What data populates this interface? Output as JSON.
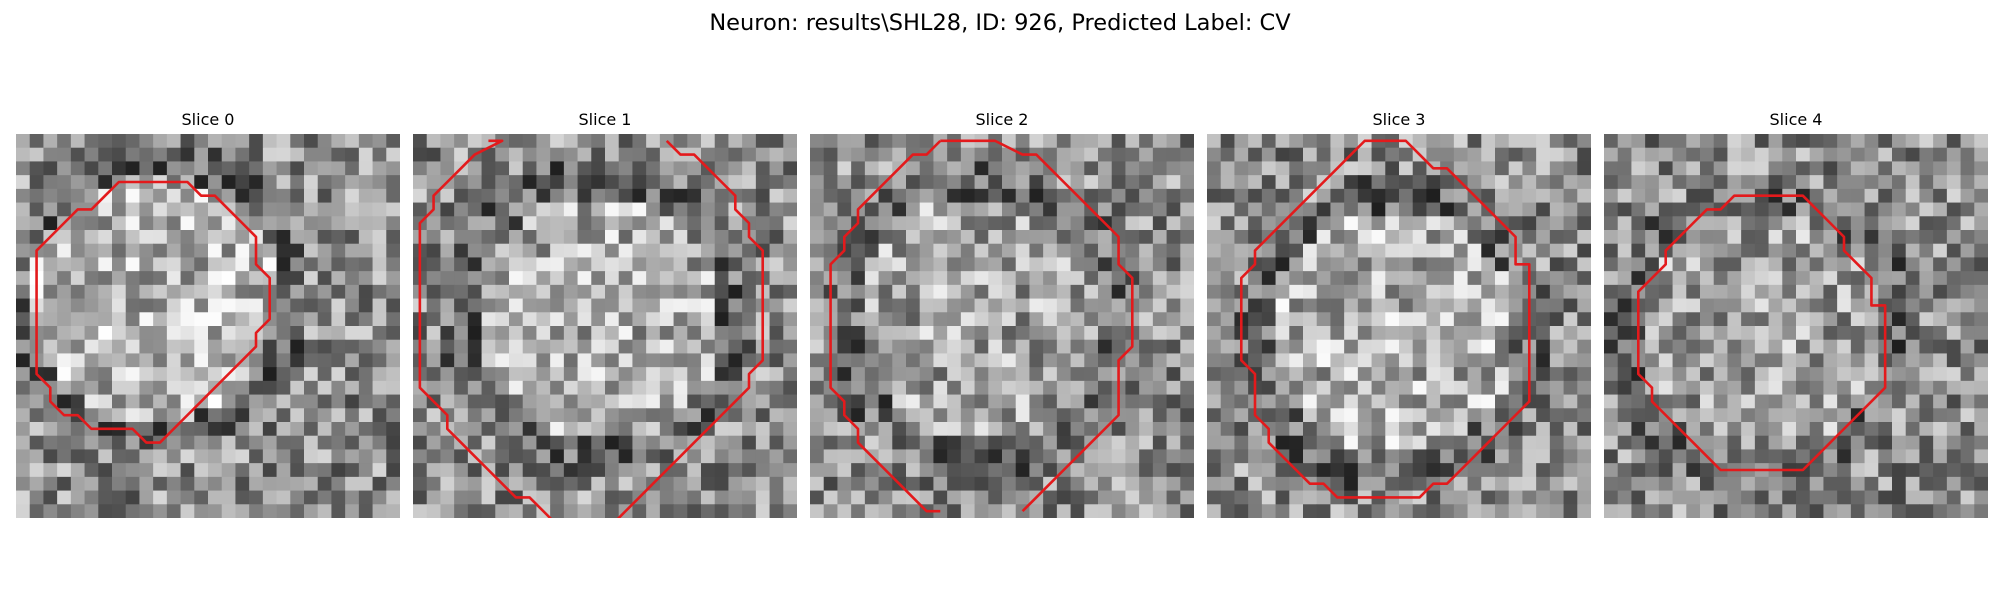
{
  "figure": {
    "title": "Neuron: results\\SHL28, ID: 926, Predicted Label: CV",
    "outline_color": "#e31a1c",
    "colormap": "gray"
  },
  "panels": [
    {
      "title": "Slice 0",
      "contour": [
        [
          10,
          3
        ],
        [
          12,
          3
        ],
        [
          13,
          4
        ],
        [
          14,
          4
        ],
        [
          15,
          5
        ],
        [
          16,
          6
        ],
        [
          17,
          7
        ],
        [
          17,
          9
        ],
        [
          18,
          10
        ],
        [
          18,
          13
        ],
        [
          17,
          14
        ],
        [
          17,
          15
        ],
        [
          16,
          16
        ],
        [
          15,
          17
        ],
        [
          14,
          18
        ],
        [
          13,
          19
        ],
        [
          12,
          20
        ],
        [
          11,
          21
        ],
        [
          10,
          22
        ],
        [
          9,
          22
        ],
        [
          8,
          21
        ],
        [
          7,
          21
        ],
        [
          6,
          21
        ],
        [
          5,
          21
        ],
        [
          4,
          20
        ],
        [
          3,
          20
        ],
        [
          2,
          19
        ],
        [
          2,
          18
        ],
        [
          1,
          17
        ],
        [
          1,
          16
        ],
        [
          1,
          14
        ],
        [
          1,
          12
        ],
        [
          1,
          10
        ],
        [
          1,
          8
        ],
        [
          2,
          7
        ],
        [
          3,
          6
        ],
        [
          4,
          5
        ],
        [
          5,
          5
        ],
        [
          6,
          4
        ],
        [
          7,
          3
        ],
        [
          8,
          3
        ],
        [
          9,
          3
        ]
      ],
      "brightness": 0.45,
      "center": [
        9.5,
        11.5
      ]
    },
    {
      "title": "Slice 1",
      "contour": [
        [
          5,
          0
        ],
        [
          6,
          0
        ],
        [
          4,
          1
        ],
        [
          3,
          2
        ],
        [
          2,
          3
        ],
        [
          1,
          4
        ],
        [
          1,
          5
        ],
        [
          0,
          6
        ],
        [
          0,
          8
        ],
        [
          0,
          10
        ],
        [
          0,
          12
        ],
        [
          0,
          14
        ],
        [
          0,
          16
        ],
        [
          0,
          18
        ],
        [
          1,
          19
        ],
        [
          2,
          20
        ],
        [
          2,
          21
        ],
        [
          3,
          22
        ],
        [
          4,
          23
        ],
        [
          5,
          24
        ],
        [
          6,
          25
        ],
        [
          7,
          26
        ],
        [
          8,
          26
        ],
        [
          9,
          27
        ],
        [
          10,
          28
        ],
        [
          11,
          28
        ]
      ],
      "contour2": [
        [
          18,
          0
        ],
        [
          19,
          1
        ],
        [
          20,
          1
        ],
        [
          21,
          2
        ],
        [
          22,
          3
        ],
        [
          23,
          4
        ],
        [
          23,
          5
        ],
        [
          24,
          6
        ],
        [
          24,
          7
        ],
        [
          25,
          8
        ],
        [
          25,
          10
        ],
        [
          25,
          12
        ],
        [
          25,
          14
        ],
        [
          25,
          16
        ],
        [
          24,
          17
        ],
        [
          24,
          18
        ],
        [
          23,
          19
        ],
        [
          22,
          20
        ],
        [
          21,
          21
        ],
        [
          20,
          22
        ],
        [
          19,
          23
        ],
        [
          18,
          24
        ],
        [
          17,
          25
        ],
        [
          16,
          26
        ],
        [
          15,
          27
        ],
        [
          14,
          28
        ]
      ],
      "brightness": 0.3,
      "center": [
        13,
        13
      ]
    },
    {
      "title": "Slice 2",
      "contour": [
        [
          9,
          0
        ],
        [
          12,
          0
        ],
        [
          13,
          0
        ],
        [
          15,
          1
        ],
        [
          16,
          1
        ],
        [
          17,
          2
        ],
        [
          18,
          3
        ],
        [
          19,
          4
        ],
        [
          20,
          5
        ],
        [
          21,
          6
        ],
        [
          22,
          7
        ],
        [
          22,
          9
        ],
        [
          23,
          10
        ],
        [
          23,
          12
        ],
        [
          23,
          14
        ],
        [
          23,
          15
        ],
        [
          22,
          16
        ],
        [
          22,
          18
        ],
        [
          22,
          20
        ],
        [
          21,
          21
        ],
        [
          20,
          22
        ],
        [
          19,
          23
        ],
        [
          18,
          24
        ],
        [
          17,
          25
        ],
        [
          16,
          26
        ],
        [
          15,
          27
        ]
      ],
      "contour2": [
        [
          9,
          0
        ],
        [
          8,
          1
        ],
        [
          7,
          1
        ],
        [
          6,
          2
        ],
        [
          5,
          3
        ],
        [
          4,
          4
        ],
        [
          3,
          5
        ],
        [
          3,
          6
        ],
        [
          2,
          7
        ],
        [
          2,
          8
        ],
        [
          1,
          9
        ],
        [
          1,
          11
        ],
        [
          1,
          13
        ],
        [
          1,
          15
        ],
        [
          1,
          17
        ],
        [
          1,
          18
        ],
        [
          2,
          19
        ],
        [
          2,
          20
        ],
        [
          3,
          21
        ],
        [
          3,
          22
        ],
        [
          4,
          23
        ],
        [
          5,
          24
        ],
        [
          6,
          25
        ],
        [
          7,
          26
        ],
        [
          8,
          27
        ],
        [
          9,
          27
        ]
      ],
      "brightness": 0.15,
      "center": [
        12,
        13
      ]
    },
    {
      "title": "Slice 3",
      "contour": [
        [
          10,
          1
        ],
        [
          11,
          0
        ],
        [
          13,
          0
        ],
        [
          14,
          0
        ],
        [
          15,
          1
        ],
        [
          16,
          2
        ],
        [
          17,
          2
        ],
        [
          18,
          3
        ],
        [
          19,
          4
        ],
        [
          20,
          5
        ],
        [
          21,
          6
        ],
        [
          22,
          7
        ],
        [
          22,
          9
        ],
        [
          23,
          9
        ],
        [
          23,
          11
        ],
        [
          23,
          13
        ],
        [
          23,
          15
        ],
        [
          23,
          17
        ],
        [
          23,
          19
        ],
        [
          22,
          20
        ],
        [
          21,
          21
        ],
        [
          20,
          22
        ],
        [
          19,
          23
        ],
        [
          18,
          24
        ],
        [
          17,
          25
        ],
        [
          16,
          25
        ],
        [
          15,
          26
        ],
        [
          14,
          26
        ],
        [
          12,
          26
        ],
        [
          10,
          26
        ],
        [
          9,
          26
        ],
        [
          8,
          25
        ],
        [
          7,
          25
        ],
        [
          6,
          24
        ],
        [
          5,
          23
        ],
        [
          4,
          22
        ],
        [
          4,
          21
        ],
        [
          3,
          20
        ],
        [
          3,
          19
        ],
        [
          3,
          18
        ],
        [
          3,
          17
        ],
        [
          2,
          16
        ],
        [
          2,
          14
        ],
        [
          2,
          12
        ],
        [
          2,
          10
        ],
        [
          3,
          9
        ],
        [
          3,
          8
        ],
        [
          4,
          7
        ],
        [
          5,
          6
        ],
        [
          6,
          5
        ],
        [
          7,
          4
        ],
        [
          8,
          3
        ],
        [
          9,
          2
        ]
      ],
      "brightness": 0.35,
      "center": [
        13,
        14
      ]
    },
    {
      "title": "Slice 4",
      "contour": [
        [
          10,
          4
        ],
        [
          12,
          4
        ],
        [
          13,
          4
        ],
        [
          14,
          4
        ],
        [
          15,
          5
        ],
        [
          16,
          6
        ],
        [
          17,
          7
        ],
        [
          17,
          8
        ],
        [
          18,
          9
        ],
        [
          19,
          10
        ],
        [
          19,
          12
        ],
        [
          20,
          12
        ],
        [
          20,
          14
        ],
        [
          20,
          16
        ],
        [
          20,
          18
        ],
        [
          19,
          19
        ],
        [
          18,
          20
        ],
        [
          17,
          21
        ],
        [
          16,
          22
        ],
        [
          15,
          23
        ],
        [
          14,
          24
        ],
        [
          13,
          24
        ],
        [
          11,
          24
        ],
        [
          9,
          24
        ],
        [
          8,
          24
        ],
        [
          7,
          23
        ],
        [
          6,
          22
        ],
        [
          5,
          21
        ],
        [
          4,
          20
        ],
        [
          3,
          19
        ],
        [
          3,
          18
        ],
        [
          2,
          17
        ],
        [
          2,
          15
        ],
        [
          2,
          13
        ],
        [
          2,
          11
        ],
        [
          3,
          10
        ],
        [
          4,
          9
        ],
        [
          4,
          8
        ],
        [
          5,
          7
        ],
        [
          6,
          6
        ],
        [
          7,
          5
        ],
        [
          8,
          5
        ],
        [
          9,
          4
        ]
      ],
      "brightness": 0.1,
      "center": [
        11,
        14
      ]
    }
  ]
}
